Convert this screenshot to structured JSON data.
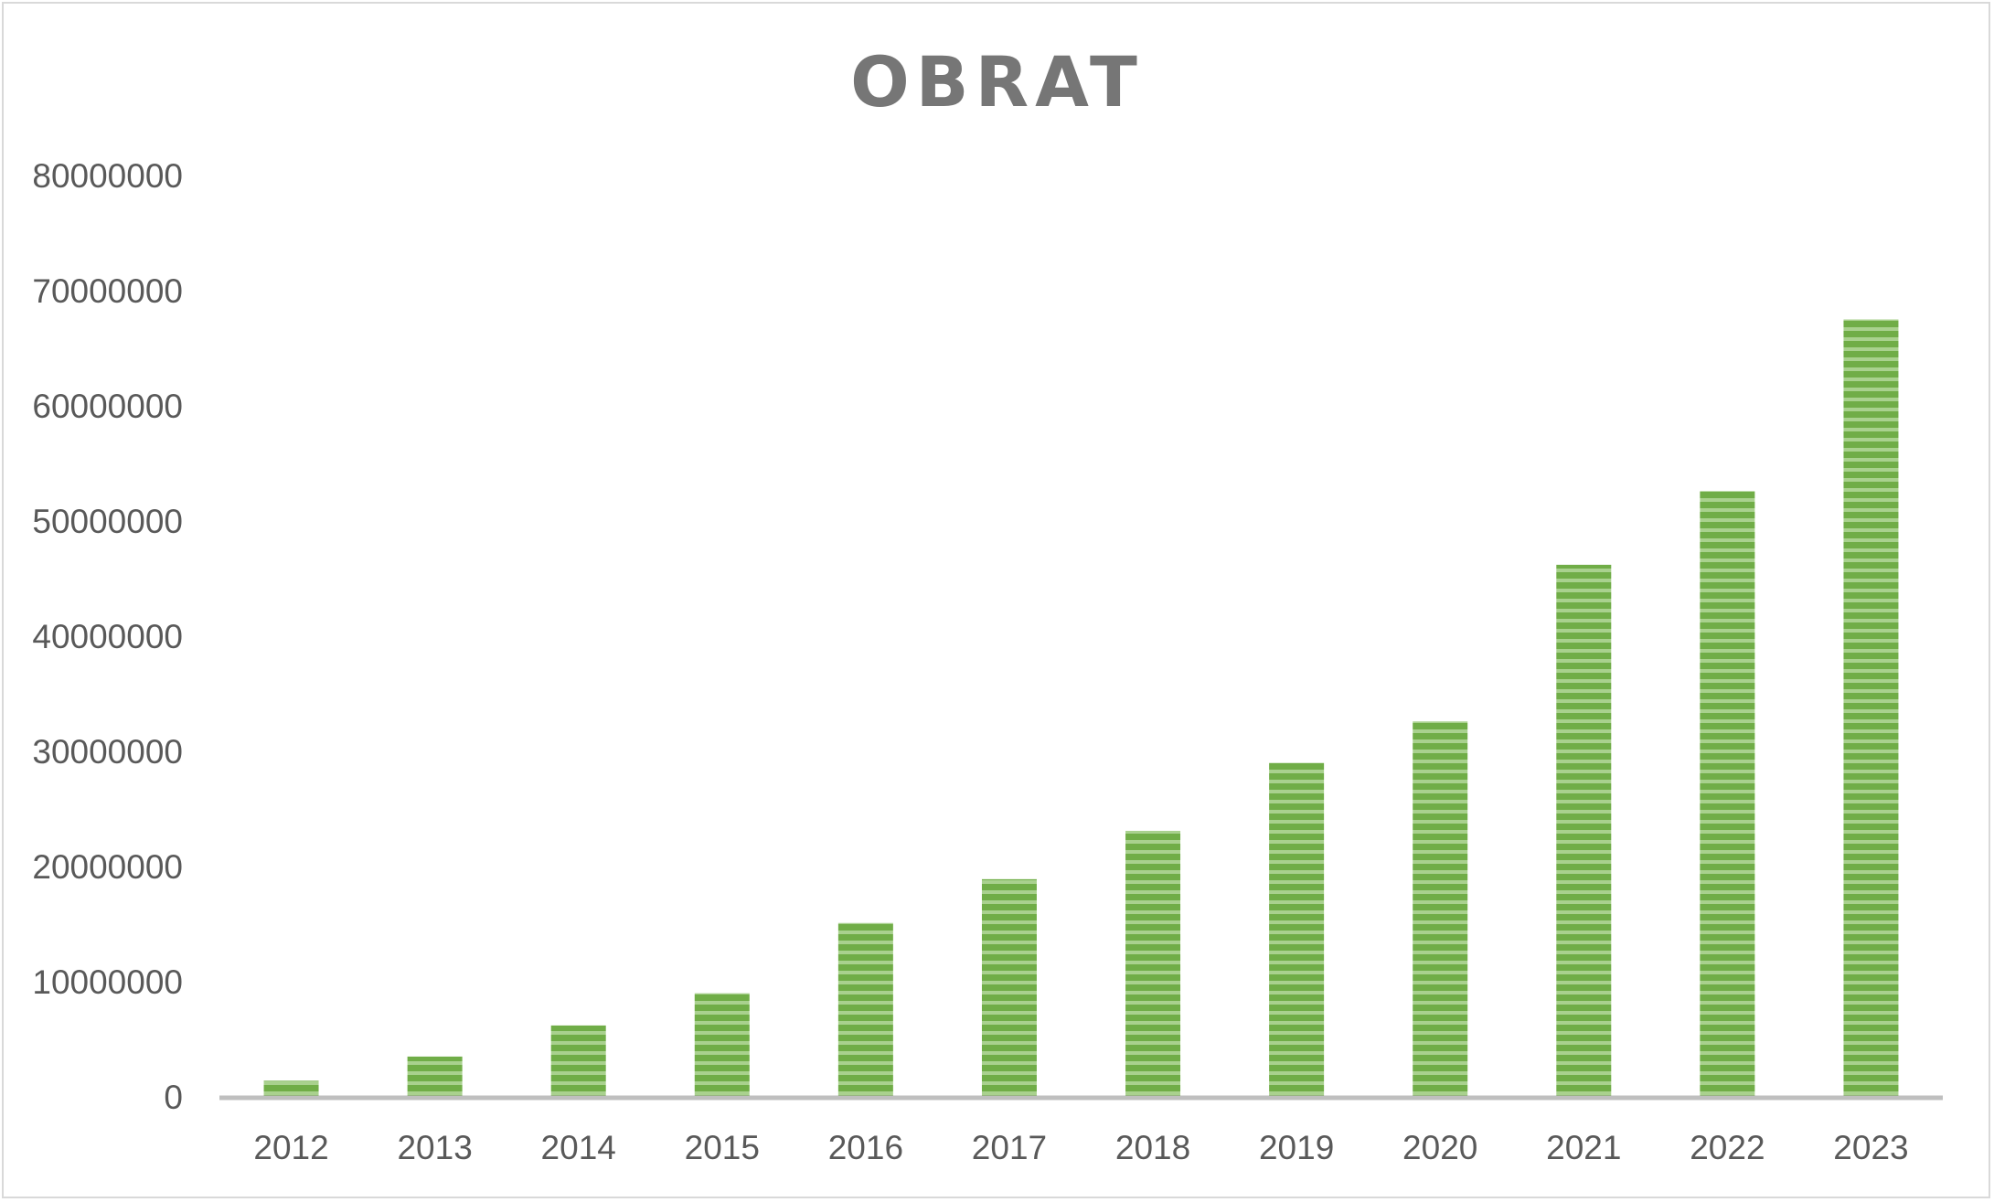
{
  "chart_data": {
    "type": "bar",
    "title": "OBRAT",
    "xlabel": "",
    "ylabel": "",
    "categories": [
      "2012",
      "2013",
      "2014",
      "2015",
      "2016",
      "2017",
      "2018",
      "2019",
      "2020",
      "2021",
      "2022",
      "2023"
    ],
    "values": [
      1400000,
      3500000,
      6200000,
      9000000,
      15100000,
      18900000,
      23100000,
      29000000,
      32600000,
      46200000,
      52600000,
      67500000
    ],
    "ylim": [
      0,
      80000000
    ],
    "yticks": [
      "0",
      "10000000",
      "20000000",
      "30000000",
      "40000000",
      "50000000",
      "60000000",
      "70000000",
      "80000000"
    ],
    "grid": false,
    "legend": "none",
    "bar_color": "#70ad47",
    "bar_stripe_color": "#a9d18e",
    "axis_color": "#bfbfbf",
    "text_color": "#595959",
    "title_color": "#767676"
  }
}
